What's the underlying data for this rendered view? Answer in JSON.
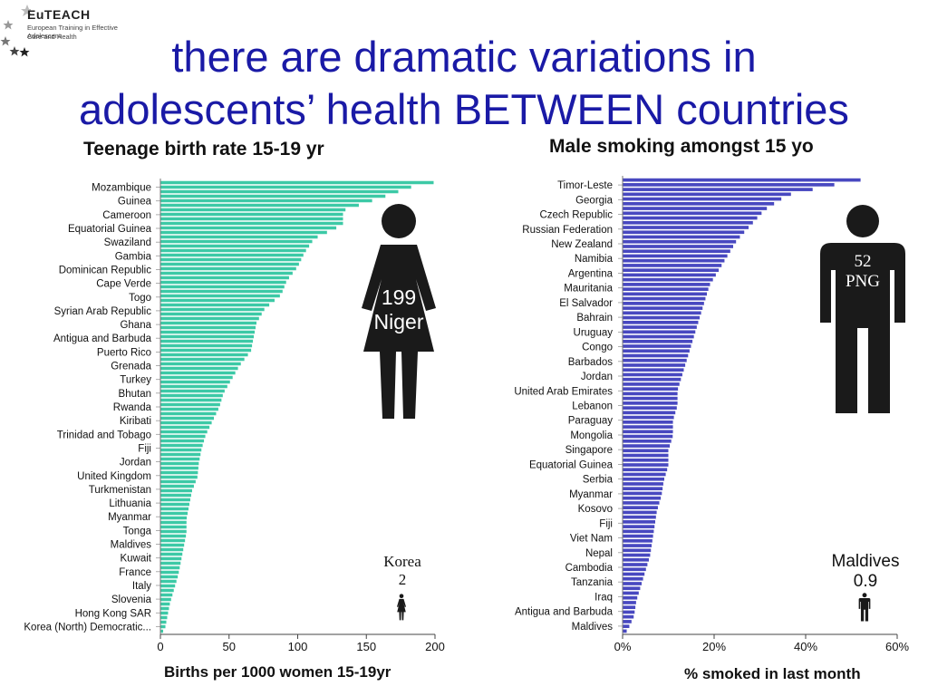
{
  "logo": {
    "name": "EuTEACH",
    "subtitle_lines": [
      "European Training in Effective Adolescent",
      "Care and Health"
    ],
    "icon": "stars-icon"
  },
  "title_lines": [
    "there are dramatic variations in",
    "adolescents’ health BETWEEN countries"
  ],
  "colors": {
    "title": "#1a1aa6",
    "births_bar": "#3cc9a6",
    "smoking_bar": "#4848c0",
    "figure": "#1a1a1a"
  },
  "callouts": {
    "births_high": {
      "value": "199",
      "country": "Niger",
      "icon": "female-figure-icon"
    },
    "births_low": {
      "country": "Korea",
      "value": "2",
      "icon": "female-figure-icon"
    },
    "smoking_high": {
      "value": "52",
      "country": "PNG",
      "icon": "male-figure-icon"
    },
    "smoking_low": {
      "country": "Maldives",
      "value": "0.9",
      "icon": "male-figure-icon"
    }
  },
  "chart_data": [
    {
      "type": "bar",
      "orientation": "horizontal",
      "title": "Teenage birth rate 15-19 yr",
      "xlabel": "Births per 1000 women 15-19yr",
      "xlim": [
        0,
        200
      ],
      "xticks": [
        "0",
        "50",
        "100",
        "150",
        "200"
      ],
      "labels": [
        "Mozambique",
        "Guinea",
        "Cameroon",
        "Equatorial Guinea",
        "Swaziland",
        "Gambia",
        "Dominican Republic",
        "Cape Verde",
        "Togo",
        "Syrian Arab Republic",
        "Ghana",
        "Antigua and Barbuda",
        "Puerto Rico",
        "Grenada",
        "Turkey",
        "Bhutan",
        "Rwanda",
        "Kiribati",
        "Trinidad and Tobago",
        "Fiji",
        "Jordan",
        "United Kingdom",
        "Turkmenistan",
        "Lithuania",
        "Myanmar",
        "Tonga",
        "Maldives",
        "Kuwait",
        "France",
        "Italy",
        "Slovenia",
        "Hong Kong SAR",
        "Korea (North) Democratic..."
      ],
      "values": [
        192,
        163,
        133,
        133,
        112,
        105,
        100,
        92,
        88,
        76,
        70,
        68,
        66,
        58,
        52,
        46,
        43,
        38,
        33,
        30,
        28,
        27,
        23,
        21,
        19,
        19,
        17,
        15,
        13,
        10,
        7,
        5,
        3
      ],
      "bar_count": 100,
      "bar_max": 199,
      "bar_min": 2
    },
    {
      "type": "bar",
      "orientation": "horizontal",
      "title": "Male smoking amongst 15 yo",
      "xlabel": "% smoked in last month",
      "xlim": [
        0,
        60
      ],
      "xticks": [
        "0%",
        "20%",
        "40%",
        "60%"
      ],
      "labels": [
        "Timor-Leste",
        "Georgia",
        "Czech Republic",
        "Russian Federation",
        "New Zealand",
        "Namibia",
        "Argentina",
        "Mauritania",
        "El Salvador",
        "Bahrain",
        "Uruguay",
        "Congo",
        "Barbados",
        "Jordan",
        "United Arab Emirates",
        "Lebanon",
        "Paraguay",
        "Mongolia",
        "Singapore",
        "Equatorial Guinea",
        "Serbia",
        "Myanmar",
        "Kosovo",
        "Fiji",
        "Viet Nam",
        "Nepal",
        "Cambodia",
        "Tanzania",
        "Iraq",
        "Antigua and Barbuda",
        "Maldives"
      ],
      "values": [
        51,
        36,
        31,
        28,
        25,
        23,
        21,
        19,
        18,
        17,
        16,
        15,
        14,
        13,
        12,
        12,
        11,
        11,
        10,
        10,
        9,
        8.5,
        7.5,
        7,
        6.5,
        6,
        5,
        4,
        3,
        2.5,
        1
      ],
      "bar_count": 96,
      "bar_max": 52,
      "bar_min": 0.9
    }
  ]
}
